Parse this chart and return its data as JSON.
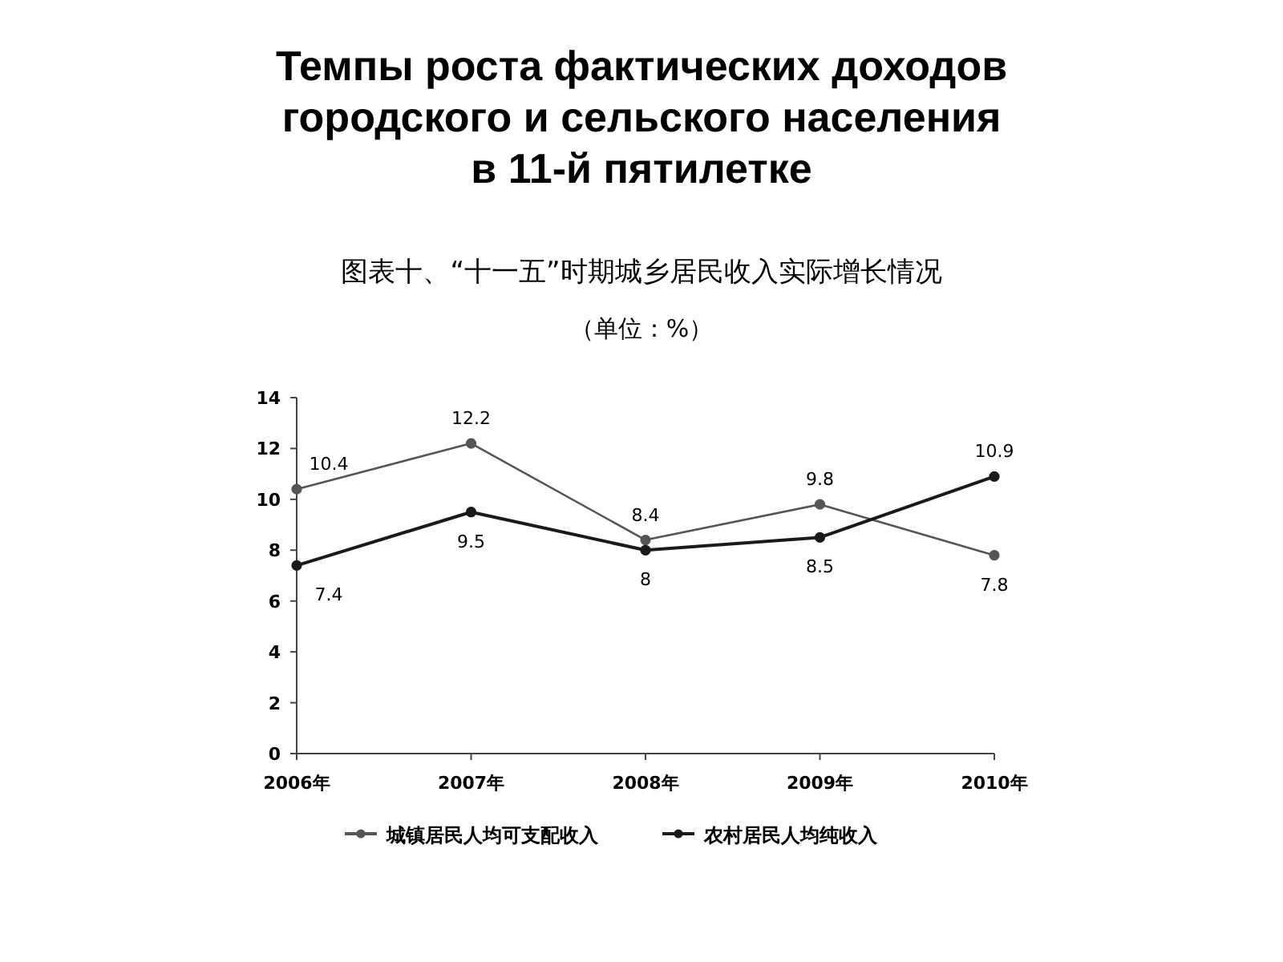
{
  "chart_data": {
    "type": "line",
    "title": "Темпы роста фактических доходов\nгородского и сельского населения\nв 11-й пятилетке",
    "subtitle": "图表十、“十一五”时期城乡居民收入实际增长情况",
    "annotations": [
      "（单位：%）"
    ],
    "categories": [
      "2006年",
      "2007年",
      "2008年",
      "2009年",
      "2010年"
    ],
    "series": [
      {
        "name": "城镇居民人均可支配收入",
        "color": "#555555",
        "values": [
          10.4,
          12.2,
          8.4,
          9.8,
          7.8
        ]
      },
      {
        "name": "农村居民人均纯收入",
        "color": "#1a1a1a",
        "values": [
          7.4,
          9.5,
          8,
          8.5,
          10.9
        ]
      }
    ],
    "ylim": [
      0,
      14
    ],
    "yticks": [
      0,
      2,
      4,
      6,
      8,
      10,
      12,
      14
    ],
    "data_labels": true,
    "marker": "circle",
    "legend": "bottom",
    "grid": false
  }
}
